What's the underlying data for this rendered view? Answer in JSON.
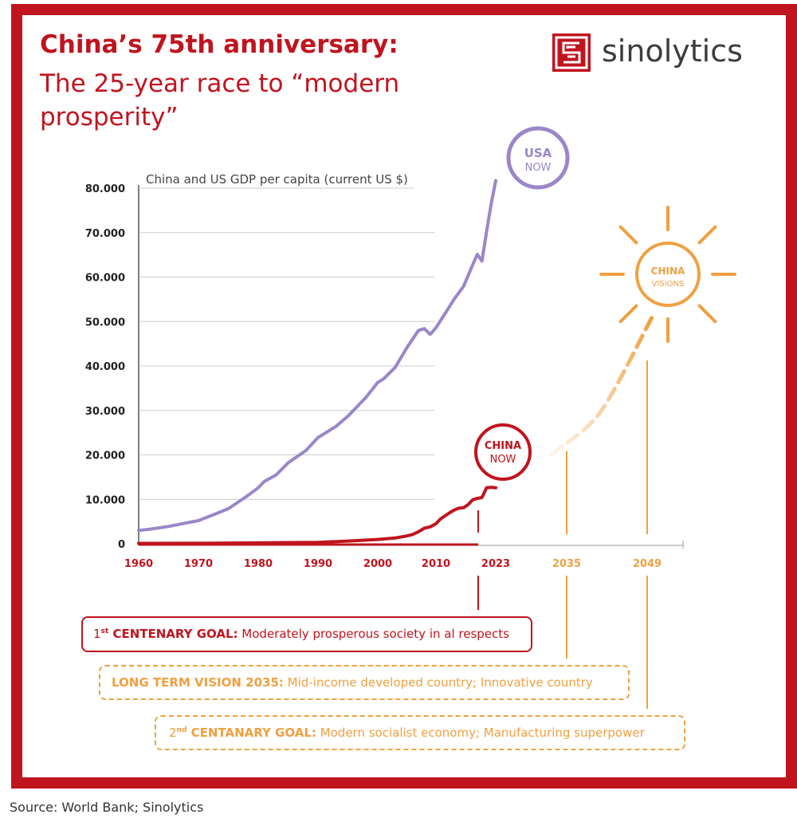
{
  "header": {
    "title_bold": "China’s 75th anniversary:",
    "title_rest": "The 25-year race to “modern prosperity”"
  },
  "logo": {
    "name": "sinolytics",
    "icon": "sinolytics-logo-icon"
  },
  "colors": {
    "red": "#c0141e",
    "purple": "#9a86c8",
    "orange": "#f0a040",
    "axis": "#555555",
    "grid": "#cccccc"
  },
  "chart_data": {
    "type": "line",
    "ylabel": "China and US GDP per capita (current US $)",
    "ylim": [
      0,
      80000
    ],
    "yticks": [
      0,
      10000,
      20000,
      30000,
      40000,
      50000,
      60000,
      70000,
      80000
    ],
    "ytick_labels": [
      "0",
      "10.000",
      "20.000",
      "30.000",
      "40.000",
      "50.000",
      "60.000",
      "70.000",
      "80.000"
    ],
    "xticks_red": [
      1960,
      1970,
      1980,
      1990,
      2000,
      2010,
      2023
    ],
    "xticks_future": [
      2035,
      2049
    ],
    "series": [
      {
        "key": "usa",
        "x": [
          1960,
          1962,
          1965,
          1968,
          1970,
          1973,
          1975,
          1978,
          1980,
          1981,
          1983,
          1985,
          1988,
          1990,
          1993,
          1995,
          1998,
          2000,
          2001,
          2003,
          2005,
          2007,
          2008,
          2009,
          2010,
          2012,
          2014,
          2016,
          2018,
          2019,
          2020,
          2021,
          2022,
          2023
        ],
        "y": [
          3000,
          3300,
          3900,
          4700,
          5200,
          6800,
          7900,
          10600,
          12600,
          14000,
          15500,
          18200,
          21000,
          23900,
          26400,
          28700,
          32900,
          36300,
          37100,
          39700,
          44100,
          48000,
          48400,
          47100,
          48600,
          51800,
          55100,
          57900,
          62800,
          65100,
          63600,
          70200,
          76400,
          81700
        ]
      },
      {
        "key": "china",
        "x": [
          1960,
          1970,
          1980,
          1990,
          1995,
          2000,
          2003,
          2005,
          2006,
          2007,
          2008,
          2009,
          2010,
          2011,
          2012,
          2013,
          2014,
          2015,
          2016,
          2017,
          2018,
          2019,
          2020,
          2021,
          2022,
          2023
        ],
        "y": [
          90,
          110,
          195,
          320,
          610,
          960,
          1300,
          1750,
          2100,
          2700,
          3500,
          3800,
          4500,
          5600,
          6300,
          7000,
          7600,
          8000,
          8100,
          8800,
          9900,
          10200,
          10400,
          12600,
          12700,
          12600
        ]
      }
    ],
    "labels": {
      "usa_circle_1": "USA",
      "usa_circle_2": "NOW",
      "china_circle_1": "CHINA",
      "china_circle_2": "NOW",
      "vision_circle_1": "CHINA",
      "vision_circle_2": "VISIONS"
    }
  },
  "goals": [
    {
      "sup": "st",
      "num": "1",
      "bold": " CENTENARY GOAL:",
      "text": " Moderately prosperous society in al respects"
    },
    {
      "sup": "",
      "num": "",
      "bold": "LONG TERM VISION 2035:",
      "text": " Mid-income developed country; Innovative country"
    },
    {
      "sup": "nd",
      "num": "2",
      "bold": " CENTANARY GOAL:",
      "text": " Modern socialist economy; Manufacturing superpower"
    }
  ],
  "source": "Source: World Bank; Sinolytics"
}
